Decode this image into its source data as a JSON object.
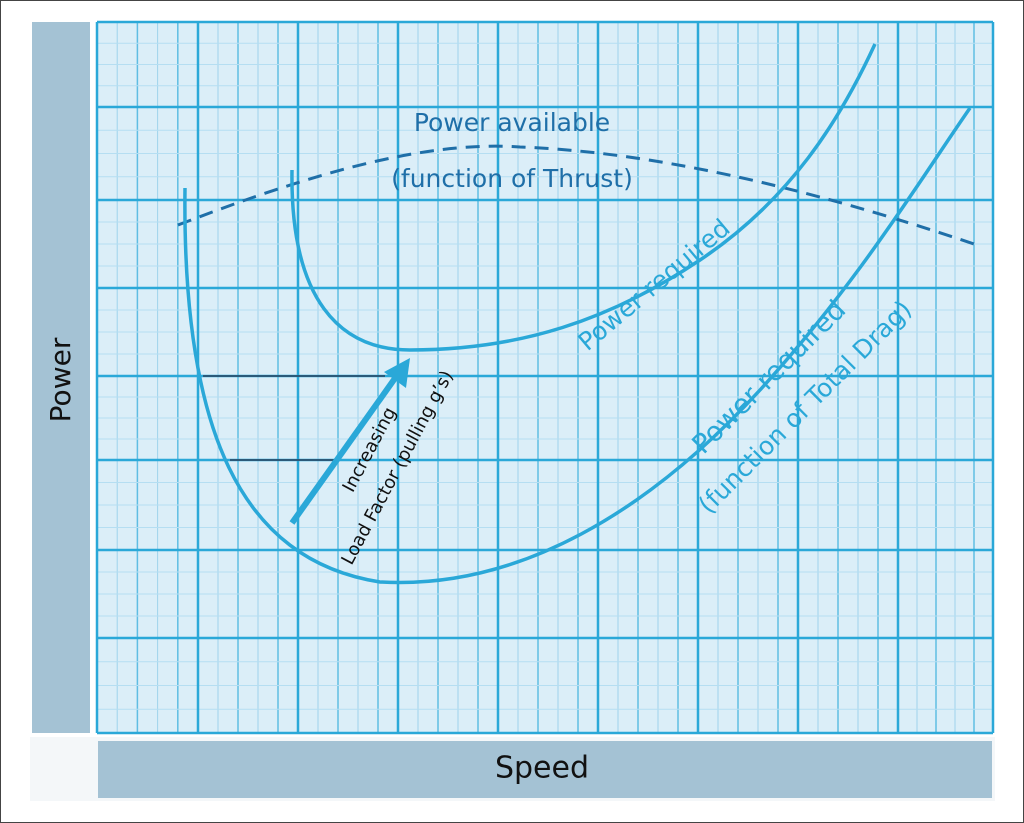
{
  "y_axis_label": "Power",
  "x_axis_label": "Speed",
  "curves": {
    "power_available": {
      "label": "Power available",
      "note": "(function of Thrust)"
    },
    "power_required_high_load": {
      "label": "Power required"
    },
    "power_required": {
      "label": "Power required",
      "note": "(function of Total Drag)"
    }
  },
  "arrow": {
    "label_line1": "Increasing",
    "label_line2": "Load Factor (pulling g’s)"
  }
}
